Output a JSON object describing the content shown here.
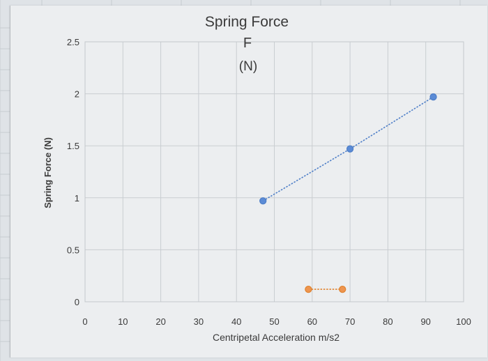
{
  "chart_data": {
    "type": "scatter",
    "title": "Spring Force",
    "subtitle_lines": [
      "F",
      "(N)"
    ],
    "xlabel": "Centripetal Acceleration m/s2",
    "ylabel": "Spring Force (N)",
    "xlim": [
      0,
      100
    ],
    "ylim": [
      0,
      2.5
    ],
    "x_ticks": [
      "0",
      "10",
      "20",
      "30",
      "40",
      "50",
      "60",
      "70",
      "80",
      "90",
      "100"
    ],
    "y_ticks": [
      "0",
      "0.5",
      "1",
      "1.5",
      "2",
      "2.5"
    ],
    "grid": true,
    "series": [
      {
        "color": "#4f7fc8",
        "marker_fill": "#5b8bd6",
        "points": [
          [
            47,
            0.97
          ],
          [
            70,
            1.47
          ],
          [
            92,
            1.97
          ]
        ]
      },
      {
        "color": "#e0832f",
        "marker_fill": "#ee9550",
        "points": [
          [
            59,
            0.12
          ],
          [
            68,
            0.12
          ]
        ]
      }
    ]
  }
}
